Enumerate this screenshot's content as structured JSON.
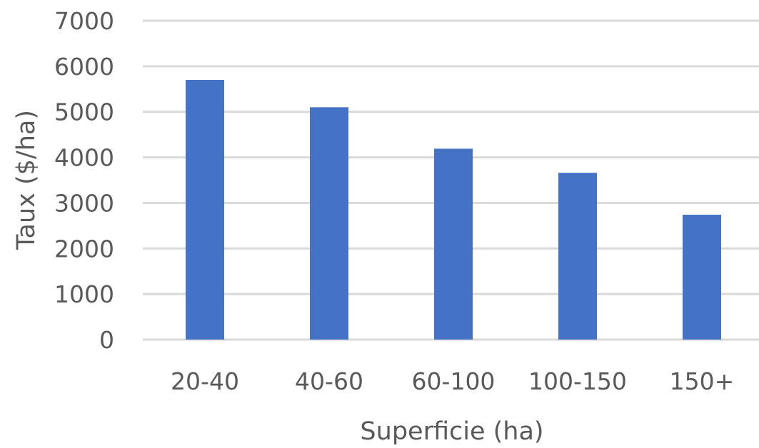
{
  "chart_data": {
    "type": "bar",
    "title": "",
    "xlabel": "Superficie (ha)",
    "ylabel": "Taux ($/ha)",
    "categories": [
      "20-40",
      "40-60",
      "60-100",
      "100-150",
      "150+"
    ],
    "values": [
      5700,
      5100,
      4190,
      3660,
      2740
    ],
    "ylim": [
      0,
      7000
    ],
    "yticks": [
      "0",
      "1000",
      "2000",
      "3000",
      "4000",
      "5000",
      "6000",
      "7000"
    ],
    "grid": true,
    "legend": "none",
    "colors": {
      "bar": "#4472C4",
      "grid": "#D9D9D9",
      "text": "#595959"
    }
  }
}
